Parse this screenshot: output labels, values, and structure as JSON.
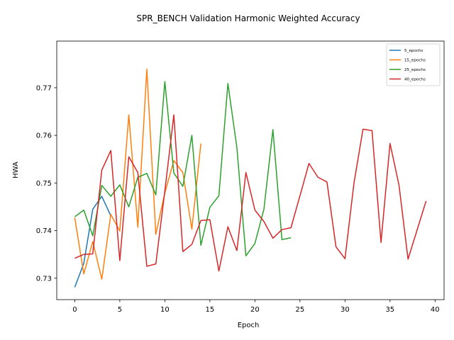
{
  "chart_data": {
    "type": "line",
    "title": "SPR_BENCH Validation Harmonic Weighted Accuracy",
    "xlabel": "Epoch",
    "ylabel": "HWA",
    "xlim": [
      -2,
      41
    ],
    "ylim": [
      0.7255,
      0.7798
    ],
    "xticks": [
      0,
      5,
      10,
      15,
      20,
      25,
      30,
      35,
      40
    ],
    "yticks": [
      0.73,
      0.74,
      0.75,
      0.76,
      0.77
    ],
    "ytick_labels": [
      "0.73",
      "0.74",
      "0.75",
      "0.76",
      "0.77"
    ],
    "grid": false,
    "legend_position": "top-right",
    "series": [
      {
        "name": "5_epochs",
        "color": "#1f77b4",
        "x": [
          0,
          1,
          2,
          3,
          4
        ],
        "values": [
          0.7281,
          0.7331,
          0.7445,
          0.7472,
          0.7431
        ]
      },
      {
        "name": "15_epochs",
        "color": "#ff7f0e",
        "x": [
          0,
          1,
          2,
          3,
          4,
          5,
          6,
          7,
          8,
          9,
          10,
          11,
          12,
          13,
          14
        ],
        "values": [
          0.7427,
          0.7309,
          0.7377,
          0.7298,
          0.7434,
          0.7399,
          0.7643,
          0.7407,
          0.7739,
          0.7392,
          0.7479,
          0.7547,
          0.7522,
          0.7403,
          0.7583
        ]
      },
      {
        "name": "25_epochs",
        "color": "#2ca02c",
        "x": [
          0,
          1,
          2,
          3,
          4,
          5,
          6,
          7,
          8,
          9,
          10,
          11,
          12,
          13,
          14,
          15,
          16,
          17,
          18,
          19,
          20,
          21,
          22,
          23,
          24
        ],
        "values": [
          0.7429,
          0.7443,
          0.7389,
          0.7495,
          0.7472,
          0.7496,
          0.745,
          0.7512,
          0.752,
          0.7475,
          0.7713,
          0.7521,
          0.7493,
          0.76,
          0.7369,
          0.7449,
          0.7473,
          0.7709,
          0.7574,
          0.7347,
          0.7373,
          0.7445,
          0.7612,
          0.7381,
          0.7385
        ]
      },
      {
        "name": "40_epochs",
        "color": "#d62728",
        "x": [
          0,
          1,
          2,
          3,
          4,
          5,
          6,
          7,
          8,
          9,
          10,
          11,
          12,
          13,
          14,
          15,
          16,
          17,
          18,
          19,
          20,
          21,
          22,
          23,
          24,
          25,
          26,
          27,
          28,
          29,
          30,
          31,
          32,
          33,
          34,
          35,
          36,
          37,
          38,
          39
        ],
        "values": [
          0.7342,
          0.735,
          0.7351,
          0.7527,
          0.7568,
          0.7337,
          0.7555,
          0.7522,
          0.7325,
          0.733,
          0.7483,
          0.7643,
          0.7356,
          0.7371,
          0.7421,
          0.7423,
          0.7315,
          0.7408,
          0.7358,
          0.7522,
          0.7443,
          0.7419,
          0.7384,
          0.7402,
          0.7406,
          0.7473,
          0.7541,
          0.7512,
          0.7502,
          0.7366,
          0.7341,
          0.75,
          0.7613,
          0.761,
          0.7375,
          0.7583,
          0.7495,
          0.734,
          0.7401,
          0.7462
        ]
      }
    ]
  }
}
